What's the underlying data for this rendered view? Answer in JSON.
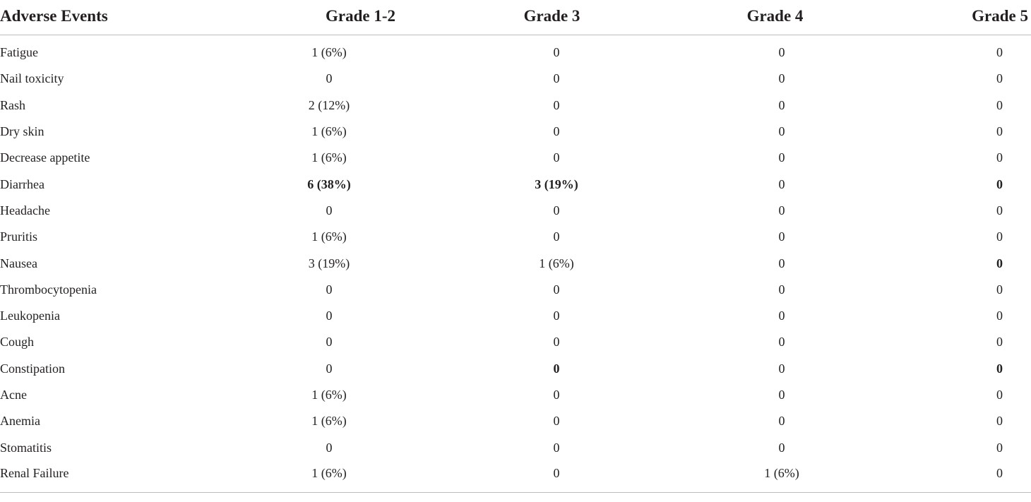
{
  "table": {
    "headers": [
      "Adverse Events",
      "Grade 1-2",
      "Grade 3",
      "Grade 4",
      "Grade 5"
    ],
    "rows": [
      {
        "event": "Fatigue",
        "g12": "1 (6%)",
        "g3": "0",
        "g4": "0",
        "g5": "0",
        "bold": []
      },
      {
        "event": "Nail toxicity",
        "g12": "0",
        "g3": "0",
        "g4": "0",
        "g5": "0",
        "bold": []
      },
      {
        "event": "Rash",
        "g12": "2 (12%)",
        "g3": "0",
        "g4": "0",
        "g5": "0",
        "bold": []
      },
      {
        "event": "Dry skin",
        "g12": "1 (6%)",
        "g3": "0",
        "g4": "0",
        "g5": "0",
        "bold": []
      },
      {
        "event": "Decrease appetite",
        "g12": "1 (6%)",
        "g3": "0",
        "g4": "0",
        "g5": "0",
        "bold": []
      },
      {
        "event": "Diarrhea",
        "g12": "6 (38%)",
        "g3": "3 (19%)",
        "g4": "0",
        "g5": "0",
        "bold": [
          "g12",
          "g3",
          "g5"
        ]
      },
      {
        "event": "Headache",
        "g12": "0",
        "g3": "0",
        "g4": "0",
        "g5": "0",
        "bold": []
      },
      {
        "event": "Pruritis",
        "g12": "1 (6%)",
        "g3": "0",
        "g4": "0",
        "g5": "0",
        "bold": []
      },
      {
        "event": "Nausea",
        "g12": "3 (19%)",
        "g3": "1 (6%)",
        "g4": "0",
        "g5": "0",
        "bold": [
          "g5"
        ]
      },
      {
        "event": "Thrombocytopenia",
        "g12": "0",
        "g3": "0",
        "g4": "0",
        "g5": "0",
        "bold": []
      },
      {
        "event": "Leukopenia",
        "g12": "0",
        "g3": "0",
        "g4": "0",
        "g5": "0",
        "bold": []
      },
      {
        "event": "Cough",
        "g12": "0",
        "g3": "0",
        "g4": "0",
        "g5": "0",
        "bold": []
      },
      {
        "event": "Constipation",
        "g12": "0",
        "g3": "0",
        "g4": "0",
        "g5": "0",
        "bold": [
          "g3",
          "g5"
        ]
      },
      {
        "event": "Acne",
        "g12": "1 (6%)",
        "g3": "0",
        "g4": "0",
        "g5": "0",
        "bold": []
      },
      {
        "event": "Anemia",
        "g12": "1 (6%)",
        "g3": "0",
        "g4": "0",
        "g5": "0",
        "bold": []
      },
      {
        "event": "Stomatitis",
        "g12": "0",
        "g3": "0",
        "g4": "0",
        "g5": "0",
        "bold": []
      },
      {
        "event": "Renal Failure",
        "g12": "1 (6%)",
        "g3": "0",
        "g4": "1 (6%)",
        "g5": "0",
        "bold": []
      }
    ]
  }
}
